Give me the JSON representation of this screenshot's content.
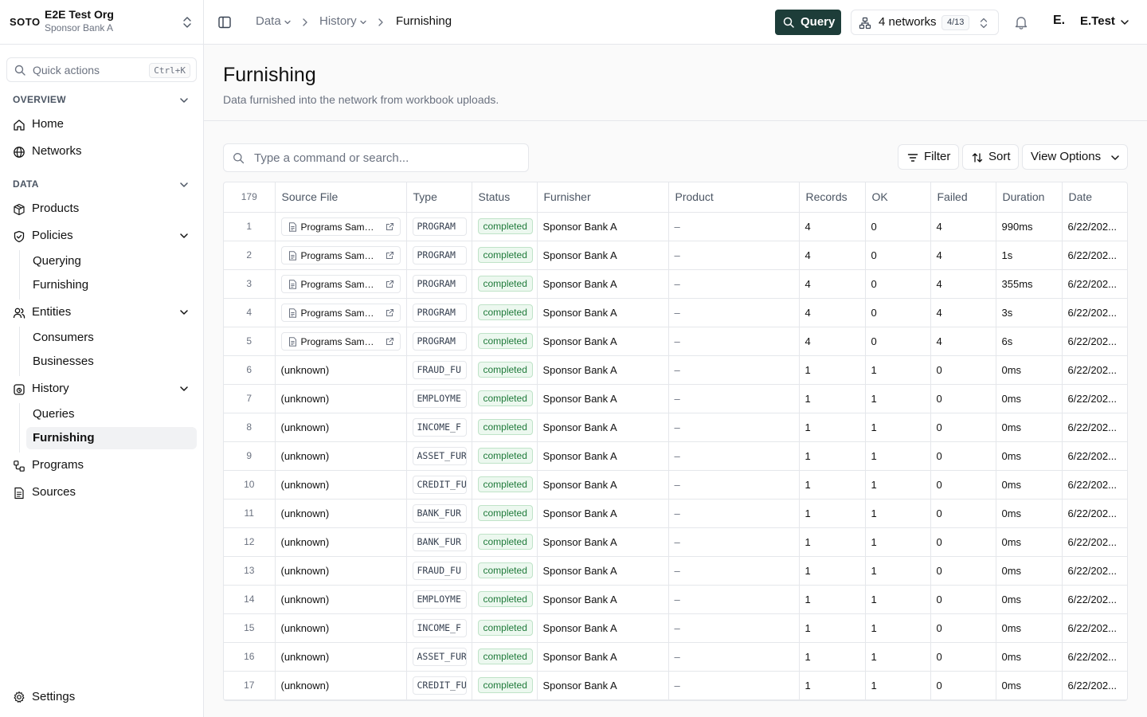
{
  "org": {
    "logo": "SOTO",
    "name": "E2E Test Org",
    "subtitle": "Sponsor Bank A"
  },
  "quick_actions": {
    "label": "Quick actions",
    "shortcut": "Ctrl+K"
  },
  "sidebar": {
    "overview_label": "OVERVIEW",
    "data_label": "DATA",
    "home": "Home",
    "networks": "Networks",
    "products": "Products",
    "policies": "Policies",
    "policies_children": [
      "Querying",
      "Furnishing"
    ],
    "entities": "Entities",
    "entities_children": [
      "Consumers",
      "Businesses"
    ],
    "history": "History",
    "history_children": [
      "Queries",
      "Furnishing"
    ],
    "programs": "Programs",
    "sources": "Sources",
    "settings": "Settings"
  },
  "breadcrumb": {
    "items": [
      "Data",
      "History",
      "Furnishing"
    ]
  },
  "topbar": {
    "query_label": "Query",
    "networks_label": "4 networks",
    "networks_count": "4/13",
    "user_initial": "E.",
    "user_name": "E.Test"
  },
  "page": {
    "title": "Furnishing",
    "subtitle": "Data furnished into the network from workbook uploads."
  },
  "toolbar": {
    "search_placeholder": "Type a command or search...",
    "filter_label": "Filter",
    "sort_label": "Sort",
    "view_options_label": "View Options"
  },
  "colors": {
    "accent": "#1d3d39",
    "status_completed_bg": "#ecf8ef",
    "status_completed_text": "#1f7a3a",
    "border": "#e5e7eb"
  },
  "table": {
    "total_count": "179",
    "columns": [
      "Source File",
      "Type",
      "Status",
      "Furnisher",
      "Product",
      "Records",
      "OK",
      "Failed",
      "Duration",
      "Date"
    ],
    "rows": [
      {
        "n": "1",
        "source": "Programs Sampl...",
        "has_file": true,
        "type": "PROGRAM",
        "status": "completed",
        "furnisher": "Sponsor Bank A",
        "product": "–",
        "records": "4",
        "ok": "0",
        "failed": "4",
        "duration": "990ms",
        "date": "6/22/202..."
      },
      {
        "n": "2",
        "source": "Programs Sampl...",
        "has_file": true,
        "type": "PROGRAM",
        "status": "completed",
        "furnisher": "Sponsor Bank A",
        "product": "–",
        "records": "4",
        "ok": "0",
        "failed": "4",
        "duration": "1s",
        "date": "6/22/202..."
      },
      {
        "n": "3",
        "source": "Programs Sampl...",
        "has_file": true,
        "type": "PROGRAM",
        "status": "completed",
        "furnisher": "Sponsor Bank A",
        "product": "–",
        "records": "4",
        "ok": "0",
        "failed": "4",
        "duration": "355ms",
        "date": "6/22/202..."
      },
      {
        "n": "4",
        "source": "Programs Sampl...",
        "has_file": true,
        "type": "PROGRAM",
        "status": "completed",
        "furnisher": "Sponsor Bank A",
        "product": "–",
        "records": "4",
        "ok": "0",
        "failed": "4",
        "duration": "3s",
        "date": "6/22/202..."
      },
      {
        "n": "5",
        "source": "Programs Sampl...",
        "has_file": true,
        "type": "PROGRAM",
        "status": "completed",
        "furnisher": "Sponsor Bank A",
        "product": "–",
        "records": "4",
        "ok": "0",
        "failed": "4",
        "duration": "6s",
        "date": "6/22/202..."
      },
      {
        "n": "6",
        "source": "(unknown)",
        "has_file": false,
        "type": "FRAUD_FU",
        "status": "completed",
        "furnisher": "Sponsor Bank A",
        "product": "–",
        "records": "1",
        "ok": "1",
        "failed": "0",
        "duration": "0ms",
        "date": "6/22/202..."
      },
      {
        "n": "7",
        "source": "(unknown)",
        "has_file": false,
        "type": "EMPLOYME",
        "status": "completed",
        "furnisher": "Sponsor Bank A",
        "product": "–",
        "records": "1",
        "ok": "1",
        "failed": "0",
        "duration": "0ms",
        "date": "6/22/202..."
      },
      {
        "n": "8",
        "source": "(unknown)",
        "has_file": false,
        "type": "INCOME_F",
        "status": "completed",
        "furnisher": "Sponsor Bank A",
        "product": "–",
        "records": "1",
        "ok": "1",
        "failed": "0",
        "duration": "0ms",
        "date": "6/22/202..."
      },
      {
        "n": "9",
        "source": "(unknown)",
        "has_file": false,
        "type": "ASSET_FUR",
        "status": "completed",
        "furnisher": "Sponsor Bank A",
        "product": "–",
        "records": "1",
        "ok": "1",
        "failed": "0",
        "duration": "0ms",
        "date": "6/22/202..."
      },
      {
        "n": "10",
        "source": "(unknown)",
        "has_file": false,
        "type": "CREDIT_FU",
        "status": "completed",
        "furnisher": "Sponsor Bank A",
        "product": "–",
        "records": "1",
        "ok": "1",
        "failed": "0",
        "duration": "0ms",
        "date": "6/22/202..."
      },
      {
        "n": "11",
        "source": "(unknown)",
        "has_file": false,
        "type": "BANK_FUR",
        "status": "completed",
        "furnisher": "Sponsor Bank A",
        "product": "–",
        "records": "1",
        "ok": "1",
        "failed": "0",
        "duration": "0ms",
        "date": "6/22/202..."
      },
      {
        "n": "12",
        "source": "(unknown)",
        "has_file": false,
        "type": "BANK_FUR",
        "status": "completed",
        "furnisher": "Sponsor Bank A",
        "product": "–",
        "records": "1",
        "ok": "1",
        "failed": "0",
        "duration": "0ms",
        "date": "6/22/202..."
      },
      {
        "n": "13",
        "source": "(unknown)",
        "has_file": false,
        "type": "FRAUD_FU",
        "status": "completed",
        "furnisher": "Sponsor Bank A",
        "product": "–",
        "records": "1",
        "ok": "1",
        "failed": "0",
        "duration": "0ms",
        "date": "6/22/202..."
      },
      {
        "n": "14",
        "source": "(unknown)",
        "has_file": false,
        "type": "EMPLOYME",
        "status": "completed",
        "furnisher": "Sponsor Bank A",
        "product": "–",
        "records": "1",
        "ok": "1",
        "failed": "0",
        "duration": "0ms",
        "date": "6/22/202..."
      },
      {
        "n": "15",
        "source": "(unknown)",
        "has_file": false,
        "type": "INCOME_F",
        "status": "completed",
        "furnisher": "Sponsor Bank A",
        "product": "–",
        "records": "1",
        "ok": "1",
        "failed": "0",
        "duration": "0ms",
        "date": "6/22/202..."
      },
      {
        "n": "16",
        "source": "(unknown)",
        "has_file": false,
        "type": "ASSET_FUR",
        "status": "completed",
        "furnisher": "Sponsor Bank A",
        "product": "–",
        "records": "1",
        "ok": "1",
        "failed": "0",
        "duration": "0ms",
        "date": "6/22/202..."
      },
      {
        "n": "17",
        "source": "(unknown)",
        "has_file": false,
        "type": "CREDIT_FU",
        "status": "completed",
        "furnisher": "Sponsor Bank A",
        "product": "–",
        "records": "1",
        "ok": "1",
        "failed": "0",
        "duration": "0ms",
        "date": "6/22/202..."
      }
    ]
  }
}
